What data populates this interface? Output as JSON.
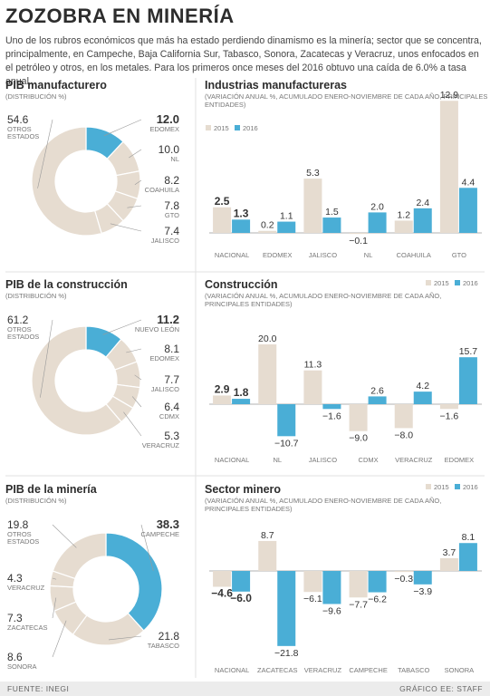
{
  "title": "ZOZOBRA EN MINERÍA",
  "intro": "Uno de los rubros económicos que más ha estado perdiendo dinamismo es la minería; sector que se concentra, principalmente, en Campeche, Baja California Sur, Tabasco, Sonora, Zacatecas y Veracruz, unos enfocados en el petróleo y otros, en los metales. Para los primeros once meses del 2016 obtuvo una caída de 6.0% a tasa anual.",
  "footer": {
    "source": "FUENTE: INEGI",
    "credit": "GRÁFICO EE: STAFF"
  },
  "colors": {
    "highlight": "#4aaed6",
    "base": "#e6dcd0",
    "y2015": "#e6dcd0",
    "y2016": "#4aaed6",
    "text": "#333333",
    "muted": "#777777"
  },
  "chart_data": [
    {
      "type": "pie",
      "title": "PIB manufacturero",
      "subtitle": "(DISTRIBUCIÓN %)",
      "slices": [
        {
          "label": "EDOMEX",
          "value": 12.0,
          "highlight": true
        },
        {
          "label": "NL",
          "value": 10.0
        },
        {
          "label": "COAHUILA",
          "value": 8.2
        },
        {
          "label": "GTO",
          "value": 7.8
        },
        {
          "label": "JALISCO",
          "value": 7.4
        },
        {
          "label": "OTROS ESTADOS",
          "value": 54.6
        }
      ]
    },
    {
      "type": "bar",
      "title": "Industrias manufactureras",
      "subtitle": "(VARIACIÓN ANUAL %, ACUMULADO ENERO-NOVIEMBRE DE CADA AÑO, PRINCIPALES ENTIDADES)",
      "legend": [
        "2015",
        "2016"
      ],
      "categories": [
        "NACIONAL",
        "EDOMEX",
        "JALISCO",
        "NL",
        "COAHUILA",
        "GTO"
      ],
      "series": [
        {
          "name": "2015",
          "values": [
            2.5,
            0.2,
            5.3,
            -0.1,
            1.2,
            12.9
          ]
        },
        {
          "name": "2016",
          "values": [
            1.3,
            1.1,
            1.5,
            2.0,
            2.4,
            4.4
          ]
        }
      ]
    },
    {
      "type": "pie",
      "title": "PIB de la construcción",
      "subtitle": "(DISTRIBUCIÓN %)",
      "slices": [
        {
          "label": "NUEVO LEÓN",
          "value": 11.2,
          "highlight": true
        },
        {
          "label": "EDOMEX",
          "value": 8.1
        },
        {
          "label": "JALISCO",
          "value": 7.7
        },
        {
          "label": "CDMX",
          "value": 6.4
        },
        {
          "label": "VERACRUZ",
          "value": 5.3
        },
        {
          "label": "OTROS ESTADOS",
          "value": 61.2
        }
      ]
    },
    {
      "type": "bar",
      "title": "Construcción",
      "subtitle": "(VARIACIÓN ANUAL %, ACUMULADO ENERO-NOVIEMBRE DE CADA AÑO, PRINCIPALES ENTIDADES)",
      "legend": [
        "2015",
        "2016"
      ],
      "categories": [
        "NACIONAL",
        "NL",
        "JALISCO",
        "CDMX",
        "VERACRUZ",
        "EDOMEX"
      ],
      "series": [
        {
          "name": "2015",
          "values": [
            2.9,
            20.0,
            11.3,
            -9.0,
            -8.0,
            -1.6
          ]
        },
        {
          "name": "2016",
          "values": [
            1.8,
            -10.7,
            -1.6,
            2.6,
            4.2,
            15.7
          ]
        }
      ]
    },
    {
      "type": "pie",
      "title": "PIB de la minería",
      "subtitle": "(DISTRIBUCIÓN %)",
      "slices": [
        {
          "label": "CAMPECHE",
          "value": 38.3,
          "highlight": true
        },
        {
          "label": "TABASCO",
          "value": 21.8
        },
        {
          "label": "SONORA",
          "value": 8.6
        },
        {
          "label": "ZACATECAS",
          "value": 7.3
        },
        {
          "label": "VERACRUZ",
          "value": 4.3
        },
        {
          "label": "OTROS ESTADOS",
          "value": 19.8
        }
      ]
    },
    {
      "type": "bar",
      "title": "Sector minero",
      "subtitle": "(VARIACIÓN ANUAL %, ACUMULADO ENERO-NOVIEMBRE DE CADA AÑO, PRINCIPALES ENTIDADES)",
      "legend": [
        "2015",
        "2016"
      ],
      "categories": [
        "NACIONAL",
        "ZACATECAS",
        "VERACRUZ",
        "CAMPECHE",
        "TABASCO",
        "SONORA"
      ],
      "series": [
        {
          "name": "2015",
          "values": [
            -4.6,
            8.7,
            -6.1,
            -7.7,
            -0.3,
            3.7
          ]
        },
        {
          "name": "2016",
          "values": [
            -6.0,
            -21.8,
            -9.6,
            -6.2,
            -3.9,
            8.1
          ]
        }
      ]
    }
  ]
}
